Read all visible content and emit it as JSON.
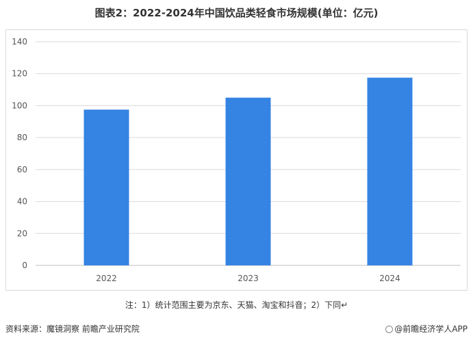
{
  "header": {
    "title": "图表2：2022-2024年中国饮品类轻食市场规模(单位：亿元)"
  },
  "chart_data": {
    "type": "bar",
    "categories": [
      "2022",
      "2023",
      "2024"
    ],
    "values": [
      97.5,
      105,
      117.5
    ],
    "ylim": [
      0,
      140
    ],
    "yticks": [
      0,
      20,
      40,
      60,
      80,
      100,
      120,
      140
    ],
    "grid": true,
    "bar_color": "#3584e4",
    "grid_color": "#d9d9d9",
    "axis_color": "#bfbfbf"
  },
  "note": "注：1）统计范围主要为京东、天猫、淘宝和抖音；2）下同↵",
  "footer": {
    "source": "资料来源：魔镜洞察 前瞻产业研究院",
    "brand": "@前瞻经济学人APP"
  }
}
